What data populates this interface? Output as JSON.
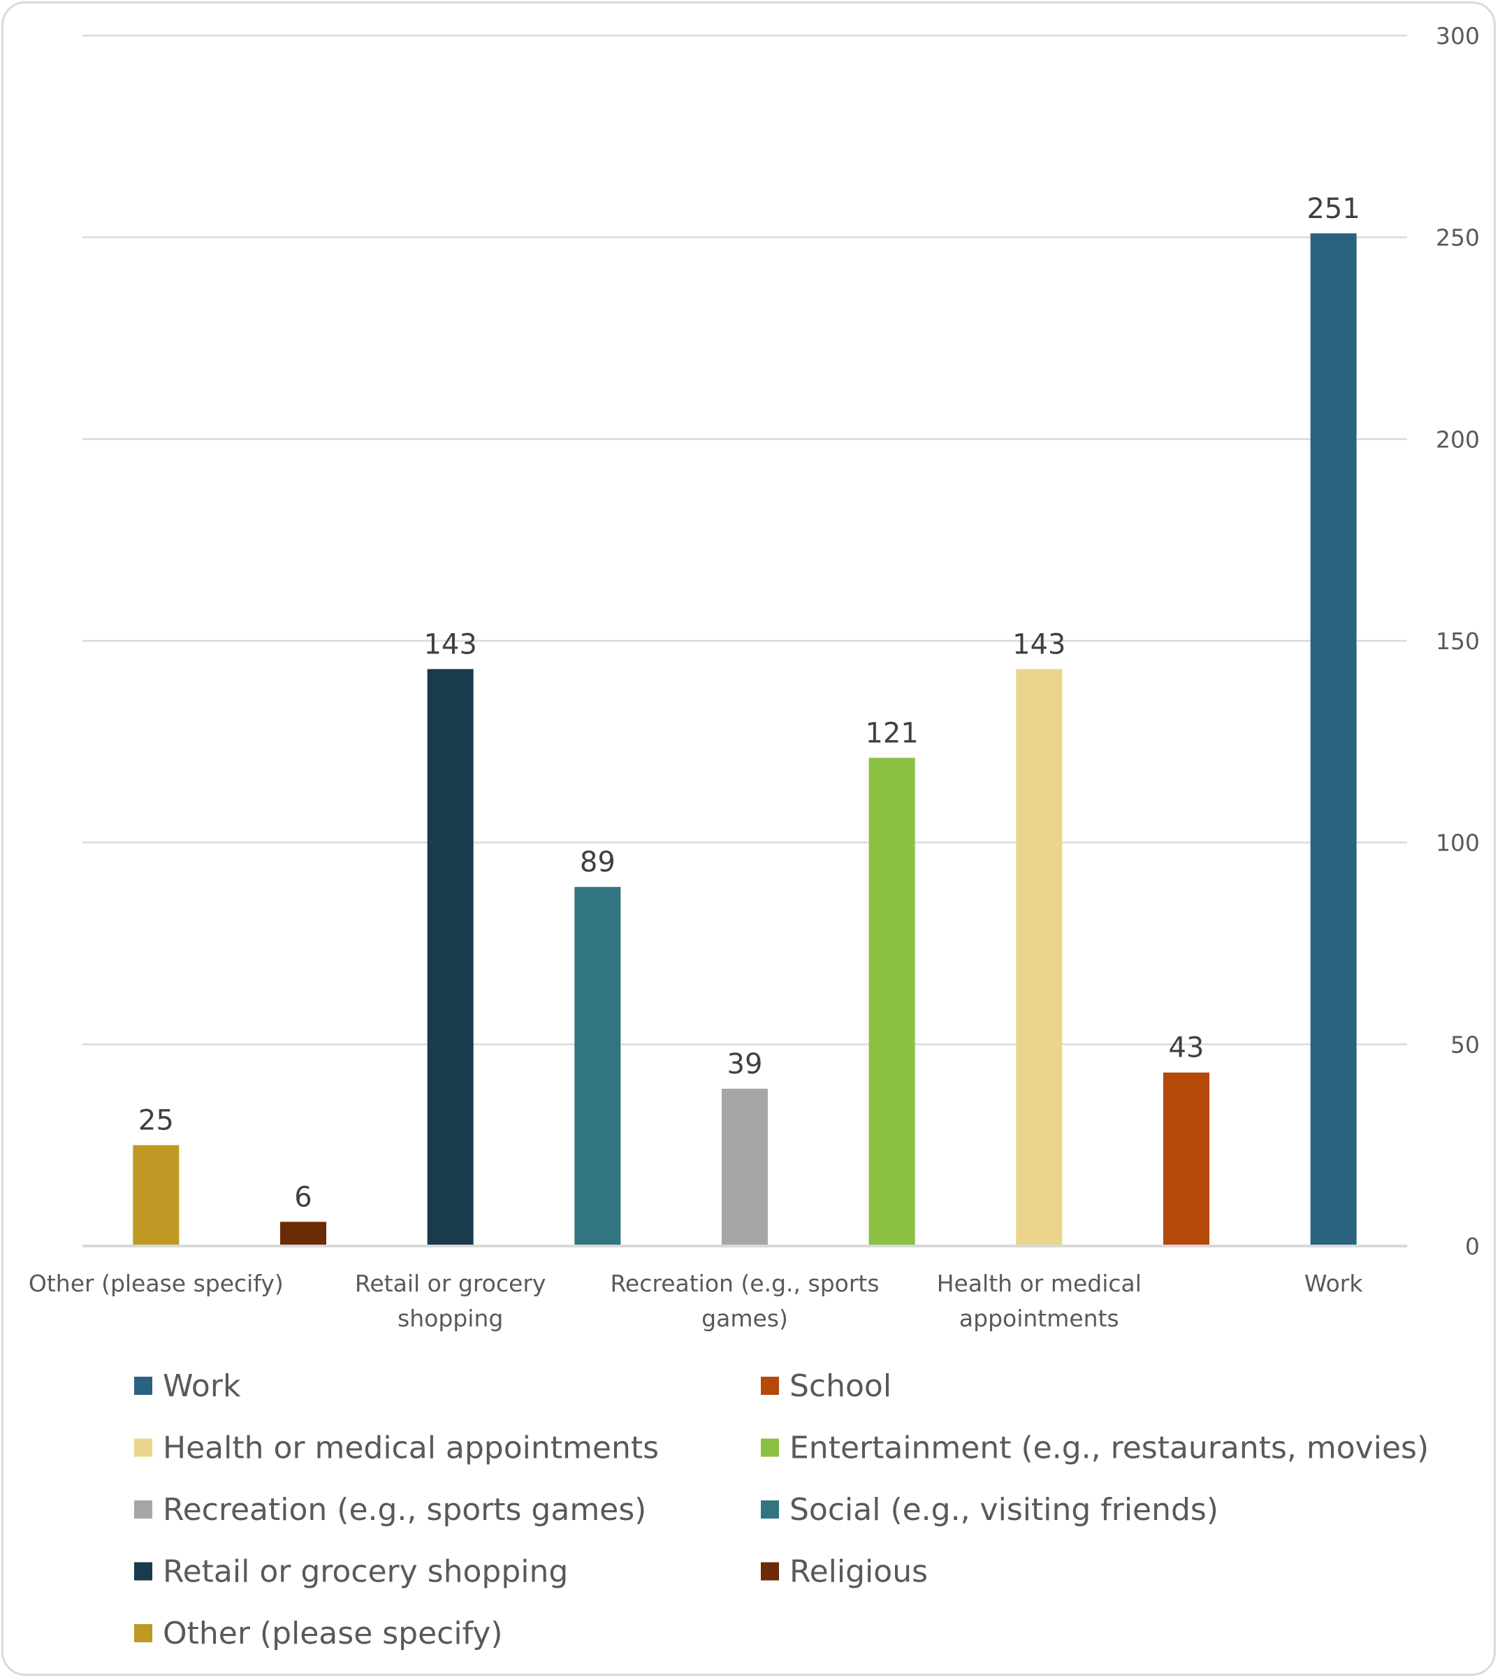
{
  "chart_data": {
    "type": "bar",
    "title": "",
    "xlabel": "",
    "ylabel": "",
    "categories": [
      "Other (please specify)",
      "Religious",
      "Retail or grocery shopping",
      "Social (e.g., visiting friends)",
      "Recreation (e.g., sports games)",
      "Entertainment (e.g., restaurants, movies)",
      "Health or medical appointments",
      "School",
      "Work"
    ],
    "x_tick_labels": [
      "Other (please specify)",
      "",
      "Retail or grocery shopping",
      "",
      "Recreation (e.g., sports games)",
      "",
      "Health or medical appointments",
      "",
      "Work"
    ],
    "values": [
      25,
      6,
      143,
      89,
      39,
      121,
      143,
      43,
      251
    ],
    "colors": [
      "#BE9A24",
      "#6B2B06",
      "#1A3A4D",
      "#307580",
      "#A6A6A6",
      "#8BC043",
      "#EBD58C",
      "#B5490A",
      "#2A6380"
    ],
    "ylim": [
      0,
      300
    ],
    "yticks": [
      0,
      50,
      100,
      150,
      200,
      250,
      300
    ],
    "y_axis_side": "right",
    "grid": true,
    "data_labels": true,
    "legend_placement": "bottom",
    "legend": [
      {
        "label": "Work",
        "color": "#2A6380"
      },
      {
        "label": "School",
        "color": "#B5490A"
      },
      {
        "label": "Health or medical appointments",
        "color": "#EBD58C"
      },
      {
        "label": "Entertainment (e.g., restaurants, movies)",
        "color": "#8BC043"
      },
      {
        "label": "Recreation (e.g., sports games)",
        "color": "#A6A6A6"
      },
      {
        "label": "Social (e.g., visiting friends)",
        "color": "#307580"
      },
      {
        "label": "Retail or grocery shopping",
        "color": "#1A3A4D"
      },
      {
        "label": "Religious",
        "color": "#6B2B06"
      },
      {
        "label": "Other (please specify)",
        "color": "#BE9A24"
      }
    ]
  }
}
